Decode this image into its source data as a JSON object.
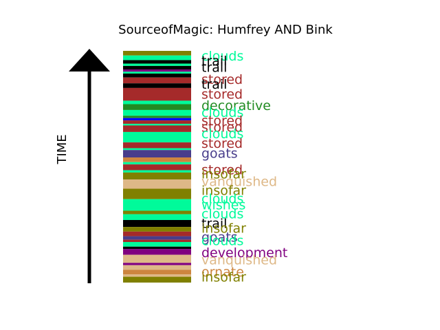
{
  "chart_data": {
    "type": "bar",
    "title": "SourceofMagic: Humfrey AND Bink",
    "ylabel": "TIME",
    "colors": {
      "olive": "#808000",
      "spring": "#00fa9a",
      "black": "#000000",
      "purple": "#800080",
      "brown": "#a52a2a",
      "green": "#228b22",
      "blue": "#0000ff",
      "slate": "#483d8b",
      "tan": "#deb887",
      "peru": "#cd853f"
    },
    "bands": [
      {
        "color": "olive",
        "t0": 0.0,
        "t1": 0.02
      },
      {
        "color": "spring",
        "t0": 0.02,
        "t1": 0.04
      },
      {
        "color": "black",
        "t0": 0.04,
        "t1": 0.055
      },
      {
        "color": "spring",
        "t0": 0.055,
        "t1": 0.065
      },
      {
        "color": "black",
        "t0": 0.065,
        "t1": 0.08
      },
      {
        "color": "purple",
        "t0": 0.08,
        "t1": 0.09
      },
      {
        "color": "spring",
        "t0": 0.09,
        "t1": 0.098
      },
      {
        "color": "black",
        "t0": 0.098,
        "t1": 0.115
      },
      {
        "color": "brown",
        "t0": 0.115,
        "t1": 0.14
      },
      {
        "color": "black",
        "t0": 0.14,
        "t1": 0.16
      },
      {
        "color": "brown",
        "t0": 0.16,
        "t1": 0.215
      },
      {
        "color": "spring",
        "t0": 0.215,
        "t1": 0.23
      },
      {
        "color": "green",
        "t0": 0.23,
        "t1": 0.255
      },
      {
        "color": "spring",
        "t0": 0.255,
        "t1": 0.28
      },
      {
        "color": "green",
        "t0": 0.28,
        "t1": 0.29
      },
      {
        "color": "blue",
        "t0": 0.29,
        "t1": 0.3
      },
      {
        "color": "brown",
        "t0": 0.3,
        "t1": 0.315
      },
      {
        "color": "spring",
        "t0": 0.315,
        "t1": 0.322
      },
      {
        "color": "brown",
        "t0": 0.322,
        "t1": 0.35
      },
      {
        "color": "spring",
        "t0": 0.35,
        "t1": 0.395
      },
      {
        "color": "brown",
        "t0": 0.395,
        "t1": 0.42
      },
      {
        "color": "spring",
        "t0": 0.42,
        "t1": 0.428
      },
      {
        "color": "slate",
        "t0": 0.428,
        "t1": 0.46
      },
      {
        "color": "peru",
        "t0": 0.46,
        "t1": 0.48
      },
      {
        "color": "spring",
        "t0": 0.48,
        "t1": 0.49
      },
      {
        "color": "brown",
        "t0": 0.49,
        "t1": 0.515
      },
      {
        "color": "spring",
        "t0": 0.515,
        "t1": 0.525
      },
      {
        "color": "olive",
        "t0": 0.525,
        "t1": 0.555
      },
      {
        "color": "tan",
        "t0": 0.555,
        "t1": 0.595
      },
      {
        "color": "olive",
        "t0": 0.595,
        "t1": 0.64
      },
      {
        "color": "spring",
        "t0": 0.64,
        "t1": 0.69
      },
      {
        "color": "olive",
        "t0": 0.69,
        "t1": 0.705
      },
      {
        "color": "spring",
        "t0": 0.705,
        "t1": 0.73
      },
      {
        "color": "black",
        "t0": 0.73,
        "t1": 0.76
      },
      {
        "color": "olive",
        "t0": 0.76,
        "t1": 0.78
      },
      {
        "color": "brown",
        "t0": 0.78,
        "t1": 0.8
      },
      {
        "color": "slate",
        "t0": 0.8,
        "t1": 0.815
      },
      {
        "color": "brown",
        "t0": 0.815,
        "t1": 0.825
      },
      {
        "color": "spring",
        "t0": 0.825,
        "t1": 0.845
      },
      {
        "color": "black",
        "t0": 0.845,
        "t1": 0.855
      },
      {
        "color": "purple",
        "t0": 0.855,
        "t1": 0.88
      },
      {
        "color": "tan",
        "t0": 0.88,
        "t1": 0.915
      },
      {
        "color": "purple",
        "t0": 0.915,
        "t1": 0.925
      },
      {
        "color": "tan",
        "t0": 0.925,
        "t1": 0.945
      },
      {
        "color": "peru",
        "t0": 0.945,
        "t1": 0.965
      },
      {
        "color": "tan",
        "t0": 0.965,
        "t1": 0.975
      },
      {
        "color": "olive",
        "t0": 0.975,
        "t1": 1.0
      }
    ],
    "labels": [
      {
        "text": "clouds",
        "t": 0.024,
        "color": "spring"
      },
      {
        "text": "trail",
        "t": 0.045,
        "color": "black"
      },
      {
        "text": "trail",
        "t": 0.072,
        "color": "black"
      },
      {
        "text": "stored",
        "t": 0.124,
        "color": "brown"
      },
      {
        "text": "trail",
        "t": 0.146,
        "color": "black"
      },
      {
        "text": "stored",
        "t": 0.188,
        "color": "brown"
      },
      {
        "text": "decorative",
        "t": 0.237,
        "color": "green"
      },
      {
        "text": "clouds",
        "t": 0.267,
        "color": "spring"
      },
      {
        "text": "stored",
        "t": 0.302,
        "color": "brown"
      },
      {
        "text": "stored",
        "t": 0.331,
        "color": "brown"
      },
      {
        "text": "clouds",
        "t": 0.359,
        "color": "spring"
      },
      {
        "text": "stored",
        "t": 0.401,
        "color": "brown"
      },
      {
        "text": "goats",
        "t": 0.443,
        "color": "slate"
      },
      {
        "text": "stored",
        "t": 0.515,
        "color": "brown"
      },
      {
        "text": "insofar",
        "t": 0.532,
        "color": "olive"
      },
      {
        "text": "vanquished",
        "t": 0.566,
        "color": "tan"
      },
      {
        "text": "insofar",
        "t": 0.604,
        "color": "olive"
      },
      {
        "text": "clouds",
        "t": 0.64,
        "color": "spring"
      },
      {
        "text": "wishes",
        "t": 0.666,
        "color": "spring"
      },
      {
        "text": "clouds",
        "t": 0.705,
        "color": "spring"
      },
      {
        "text": "trail",
        "t": 0.747,
        "color": "black"
      },
      {
        "text": "insofar",
        "t": 0.767,
        "color": "olive"
      },
      {
        "text": "goats",
        "t": 0.805,
        "color": "slate"
      },
      {
        "text": "clouds",
        "t": 0.821,
        "color": "spring"
      },
      {
        "text": "development",
        "t": 0.872,
        "color": "purple"
      },
      {
        "text": "vanquished",
        "t": 0.903,
        "color": "tan"
      },
      {
        "text": "ornate",
        "t": 0.955,
        "color": "peru"
      },
      {
        "text": "insofar",
        "t": 0.978,
        "color": "olive"
      }
    ]
  }
}
